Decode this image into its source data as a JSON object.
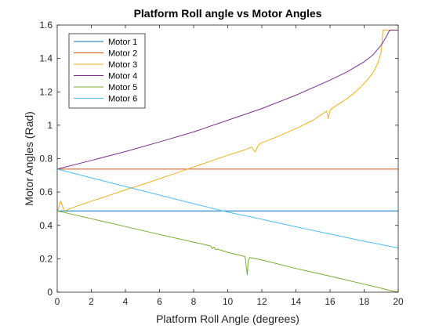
{
  "chart_data": {
    "type": "line",
    "title": "Platform Roll angle vs Motor Angles",
    "xlabel": "Platform Roll Angle (degrees)",
    "ylabel": "Motor Angles (Rad)",
    "xlim": [
      0,
      20
    ],
    "ylim": [
      0,
      1.6
    ],
    "xticks": [
      "0",
      "2",
      "4",
      "6",
      "8",
      "10",
      "12",
      "14",
      "16",
      "18",
      "20"
    ],
    "yticks": [
      "0",
      "0.2",
      "0.4",
      "0.6",
      "0.8",
      "1",
      "1.2",
      "1.4",
      "1.6"
    ],
    "grid": false,
    "box": true,
    "legend_position": "top-left",
    "series": [
      {
        "name": "Motor 1",
        "color": "#0072BD",
        "x": [
          0,
          20
        ],
        "y": [
          0.487,
          0.487
        ]
      },
      {
        "name": "Motor 2",
        "color": "#D95319",
        "x": [
          0,
          20
        ],
        "y": [
          0.737,
          0.737
        ]
      },
      {
        "name": "Motor 3",
        "color": "#EDB120",
        "x": [
          0,
          0.1,
          0.2,
          0.3,
          0.4,
          0.5,
          1,
          2,
          3,
          4,
          5,
          6,
          7,
          8,
          9,
          10,
          11,
          11.4,
          11.6,
          11.8,
          11.9,
          12,
          13,
          14,
          15,
          15.8,
          15.9,
          16,
          16.1,
          17,
          17.5,
          18,
          18.5,
          18.8,
          19,
          19.1,
          19.2,
          19.5,
          20
        ],
        "y": [
          0.487,
          0.51,
          0.545,
          0.52,
          0.49,
          0.49,
          0.51,
          0.545,
          0.578,
          0.613,
          0.645,
          0.68,
          0.714,
          0.75,
          0.785,
          0.82,
          0.852,
          0.87,
          0.84,
          0.88,
          0.89,
          0.895,
          0.935,
          0.98,
          1.03,
          1.085,
          1.04,
          1.09,
          1.1,
          1.16,
          1.2,
          1.25,
          1.31,
          1.37,
          1.44,
          1.57,
          1.57,
          1.57,
          1.57
        ]
      },
      {
        "name": "Motor 4",
        "color": "#7E2F8E",
        "x": [
          0,
          2,
          4,
          6,
          8,
          10,
          12,
          14,
          16,
          17,
          18,
          18.5,
          19,
          19.3,
          19.5,
          20
        ],
        "y": [
          0.737,
          0.789,
          0.842,
          0.9,
          0.96,
          1.03,
          1.1,
          1.18,
          1.27,
          1.32,
          1.38,
          1.42,
          1.48,
          1.53,
          1.57,
          1.57
        ]
      },
      {
        "name": "Motor 5",
        "color": "#77AC30",
        "x": [
          0,
          2,
          4,
          6,
          8,
          9,
          9.1,
          9.2,
          9.3,
          9.4,
          10,
          11,
          11.05,
          11.1,
          11.15,
          11.2,
          11.3,
          12,
          14,
          16,
          18,
          19,
          19.5,
          20
        ],
        "y": [
          0.487,
          0.44,
          0.393,
          0.346,
          0.3,
          0.277,
          0.262,
          0.27,
          0.255,
          0.258,
          0.239,
          0.214,
          0.19,
          0.14,
          0.105,
          0.19,
          0.208,
          0.193,
          0.142,
          0.096,
          0.048,
          0.024,
          0.01,
          0.0
        ]
      },
      {
        "name": "Motor 6",
        "color": "#4DBEEE",
        "x": [
          0,
          2,
          4,
          6,
          8,
          10,
          12,
          14,
          16,
          18,
          20
        ],
        "y": [
          0.737,
          0.685,
          0.633,
          0.582,
          0.53,
          0.48,
          0.437,
          0.392,
          0.348,
          0.305,
          0.265
        ]
      }
    ]
  }
}
